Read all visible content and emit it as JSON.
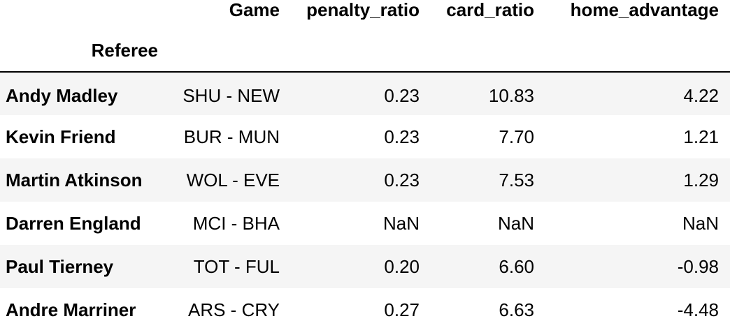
{
  "table": {
    "columns": [
      "Game",
      "penalty_ratio",
      "card_ratio",
      "home_advantage"
    ],
    "index_name": "Referee",
    "rows": [
      {
        "referee": "Andy Madley",
        "game": "SHU - NEW",
        "penalty_ratio": "0.23",
        "card_ratio": "10.83",
        "home_advantage": "4.22"
      },
      {
        "referee": "Kevin Friend",
        "game": "BUR - MUN",
        "penalty_ratio": "0.23",
        "card_ratio": "7.70",
        "home_advantage": "1.21"
      },
      {
        "referee": "Martin Atkinson",
        "game": "WOL - EVE",
        "penalty_ratio": "0.23",
        "card_ratio": "7.53",
        "home_advantage": "1.29"
      },
      {
        "referee": "Darren England",
        "game": "MCI - BHA",
        "penalty_ratio": "NaN",
        "card_ratio": "NaN",
        "home_advantage": "NaN"
      },
      {
        "referee": "Paul Tierney",
        "game": "TOT - FUL",
        "penalty_ratio": "0.20",
        "card_ratio": "6.60",
        "home_advantage": "-0.98"
      },
      {
        "referee": "Andre Marriner",
        "game": "ARS - CRY",
        "penalty_ratio": "0.27",
        "card_ratio": "6.63",
        "home_advantage": "-4.48"
      }
    ]
  }
}
